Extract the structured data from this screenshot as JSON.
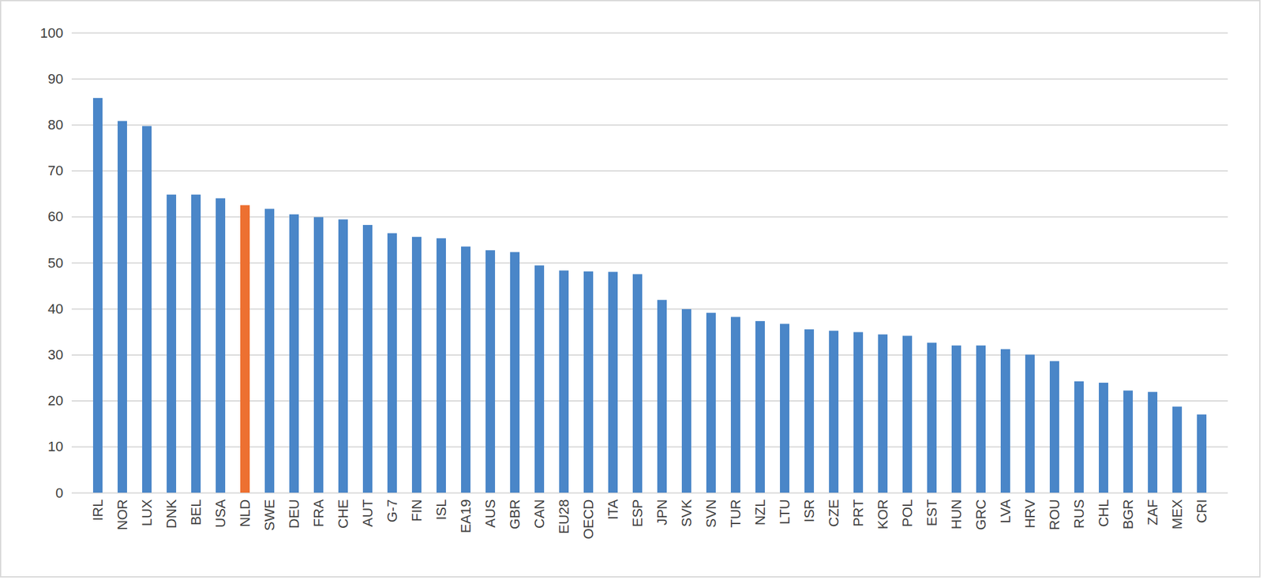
{
  "chart_data": {
    "type": "bar",
    "categories": [
      "IRL",
      "NOR",
      "LUX",
      "DNK",
      "BEL",
      "USA",
      "NLD",
      "SWE",
      "DEU",
      "FRA",
      "CHE",
      "AUT",
      "G-7",
      "FIN",
      "ISL",
      "EA19",
      "AUS",
      "GBR",
      "CAN",
      "EU28",
      "OECD",
      "ITA",
      "ESP",
      "JPN",
      "SVK",
      "SVN",
      "TUR",
      "NZL",
      "LTU",
      "ISR",
      "CZE",
      "PRT",
      "KOR",
      "POL",
      "EST",
      "HUN",
      "GRC",
      "LVA",
      "HRV",
      "ROU",
      "RUS",
      "CHL",
      "BGR",
      "ZAF",
      "MEX",
      "CRI"
    ],
    "values": [
      85.8,
      80.8,
      79.7,
      64.8,
      64.8,
      64.0,
      62.5,
      61.7,
      60.5,
      59.9,
      59.4,
      58.2,
      56.4,
      55.6,
      55.3,
      53.5,
      52.7,
      52.3,
      49.4,
      48.3,
      48.1,
      48.0,
      47.5,
      41.9,
      39.9,
      39.1,
      38.2,
      37.3,
      36.7,
      35.5,
      35.2,
      34.9,
      34.4,
      34.1,
      32.6,
      32.0,
      32.0,
      31.2,
      30.0,
      28.6,
      24.2,
      23.9,
      22.2,
      21.9,
      18.7,
      17.0
    ],
    "colors": [
      "#4a86c8",
      "#4a86c8",
      "#4a86c8",
      "#4a86c8",
      "#4a86c8",
      "#4a86c8",
      "#ed7031",
      "#4a86c8",
      "#4a86c8",
      "#4a86c8",
      "#4a86c8",
      "#4a86c8",
      "#4a86c8",
      "#4a86c8",
      "#4a86c8",
      "#4a86c8",
      "#4a86c8",
      "#4a86c8",
      "#4a86c8",
      "#4a86c8",
      "#4a86c8",
      "#4a86c8",
      "#4a86c8",
      "#4a86c8",
      "#4a86c8",
      "#4a86c8",
      "#4a86c8",
      "#4a86c8",
      "#4a86c8",
      "#4a86c8",
      "#4a86c8",
      "#4a86c8",
      "#4a86c8",
      "#4a86c8",
      "#4a86c8",
      "#4a86c8",
      "#4a86c8",
      "#4a86c8",
      "#4a86c8",
      "#4a86c8",
      "#4a86c8",
      "#4a86c8",
      "#4a86c8",
      "#4a86c8",
      "#4a86c8",
      "#4a86c8"
    ],
    "ylim": [
      0,
      100
    ],
    "yticks": [
      0,
      10,
      20,
      30,
      40,
      50,
      60,
      70,
      80,
      90,
      100
    ],
    "grid": true
  }
}
